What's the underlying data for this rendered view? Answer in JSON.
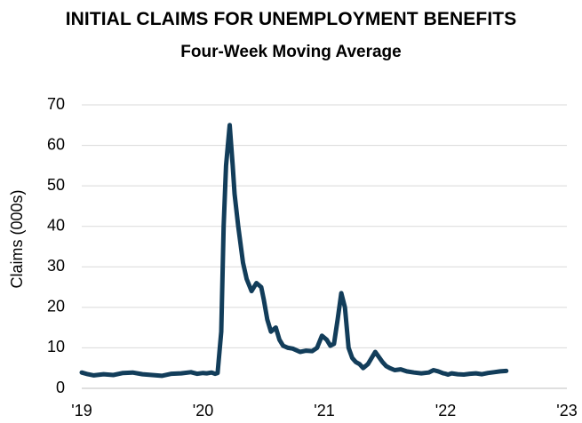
{
  "chart_data": {
    "type": "line",
    "title": "INITIAL CLAIMS FOR UNEMPLOYMENT BENEFITS",
    "subtitle": "Four-Week Moving Average",
    "xlabel": "",
    "ylabel": "Claims (000s)",
    "ylim": [
      0,
      70
    ],
    "yticks": [
      0,
      10,
      20,
      30,
      40,
      50,
      60,
      70
    ],
    "xlim": [
      2019.0,
      2023.0
    ],
    "xticks": [
      {
        "x": 2019,
        "label": "'19"
      },
      {
        "x": 2020,
        "label": "'20"
      },
      {
        "x": 2021,
        "label": "'21"
      },
      {
        "x": 2022,
        "label": "'22"
      },
      {
        "x": 2023,
        "label": "'23"
      }
    ],
    "grid": true,
    "legend": "none",
    "series_color": "#123d5a",
    "series": [
      {
        "x": [
          2019.0,
          2019.05,
          2019.1,
          2019.18,
          2019.26,
          2019.34,
          2019.42,
          2019.5,
          2019.58,
          2019.66,
          2019.74,
          2019.82,
          2019.9,
          2019.95,
          2020.0,
          2020.03,
          2020.07,
          2020.1,
          2020.12,
          2020.15,
          2020.17,
          2020.19,
          2020.22,
          2020.245,
          2020.26,
          2020.29,
          2020.33,
          2020.36,
          2020.4,
          2020.44,
          2020.48,
          2020.5,
          2020.53,
          2020.56,
          2020.6,
          2020.63,
          2020.66,
          2020.7,
          2020.74,
          2020.8,
          2020.85,
          2020.9,
          2020.94,
          2020.98,
          2021.02,
          2021.05,
          2021.08,
          2021.11,
          2021.14,
          2021.17,
          2021.2,
          2021.23,
          2021.26,
          2021.29,
          2021.32,
          2021.36,
          2021.42,
          2021.48,
          2021.51,
          2021.54,
          2021.58,
          2021.63,
          2021.68,
          2021.74,
          2021.8,
          2021.86,
          2021.9,
          2021.94,
          2021.98,
          2022.0,
          2022.02,
          2022.05,
          2022.1,
          2022.15,
          2022.2,
          2022.25,
          2022.3,
          2022.35,
          2022.4,
          2022.45,
          2022.5
        ],
        "values": [
          3.9,
          3.5,
          3.2,
          3.5,
          3.3,
          3.8,
          3.9,
          3.5,
          3.3,
          3.1,
          3.6,
          3.7,
          4.0,
          3.6,
          3.8,
          3.7,
          3.9,
          3.6,
          3.8,
          14.0,
          40.0,
          55.0,
          65.0,
          55.0,
          48.0,
          40.0,
          31.0,
          27.0,
          24.0,
          26.0,
          25.0,
          22.0,
          17.0,
          14.0,
          15.0,
          12.0,
          10.5,
          10.0,
          9.8,
          9.0,
          9.3,
          9.2,
          10.0,
          13.0,
          12.0,
          10.5,
          11.0,
          17.0,
          23.5,
          20.0,
          10.0,
          7.5,
          6.5,
          6.0,
          5.0,
          6.0,
          9.0,
          6.5,
          5.5,
          5.0,
          4.5,
          4.7,
          4.2,
          3.9,
          3.7,
          3.9,
          4.5,
          4.2,
          3.7,
          3.6,
          3.4,
          3.7,
          3.5,
          3.4,
          3.6,
          3.7,
          3.5,
          3.8,
          4.0,
          4.2,
          4.3
        ]
      }
    ]
  }
}
